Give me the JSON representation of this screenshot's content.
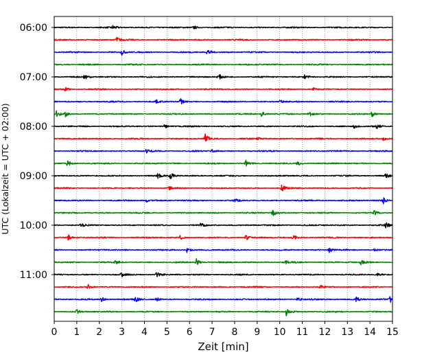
{
  "chart_data": {
    "type": "line",
    "xlabel": "Zeit  [min]",
    "ylabel": "UTC (Lokalzeit = UTC + 02:00)",
    "xlim": [
      0,
      15
    ],
    "x_ticks": [
      "0",
      "1",
      "2",
      "3",
      "4",
      "5",
      "6",
      "7",
      "8",
      "9",
      "10",
      "11",
      "12",
      "13",
      "14",
      "15"
    ],
    "y_ticks": [
      "06:00",
      "07:00",
      "08:00",
      "09:00",
      "10:00",
      "11:00"
    ],
    "grid": "vertical dotted at every minute",
    "trace_interval_minutes": 15,
    "trace_colors": [
      "#000000",
      "#ff0000",
      "#0000ff",
      "#008000"
    ],
    "traces": [
      {
        "start": "06:00",
        "color": "#000000",
        "events": [
          [
            2.6,
            0.35
          ],
          [
            6.2,
            0.3
          ]
        ]
      },
      {
        "start": "06:15",
        "color": "#ff0000",
        "events": [
          [
            2.75,
            0.6
          ]
        ]
      },
      {
        "start": "06:30",
        "color": "#0000ff",
        "events": [
          [
            3.0,
            0.45
          ],
          [
            6.8,
            0.65
          ]
        ]
      },
      {
        "start": "06:45",
        "color": "#008000",
        "events": []
      },
      {
        "start": "07:00",
        "color": "#000000",
        "events": [
          [
            1.35,
            0.55
          ],
          [
            7.3,
            0.45
          ],
          [
            11.1,
            0.4
          ]
        ]
      },
      {
        "start": "07:15",
        "color": "#ff0000",
        "events": [
          [
            0.5,
            0.3
          ],
          [
            11.5,
            0.25
          ]
        ]
      },
      {
        "start": "07:30",
        "color": "#0000ff",
        "events": [
          [
            4.5,
            0.35
          ],
          [
            5.6,
            0.55
          ],
          [
            10.0,
            0.3
          ]
        ]
      },
      {
        "start": "07:45",
        "color": "#008000",
        "events": [
          [
            0.1,
            0.5
          ],
          [
            0.5,
            0.5
          ],
          [
            9.2,
            0.5
          ],
          [
            11.3,
            0.5
          ],
          [
            14.1,
            0.45
          ]
        ]
      },
      {
        "start": "08:00",
        "color": "#000000",
        "events": [
          [
            4.9,
            0.4
          ],
          [
            13.3,
            0.35
          ],
          [
            14.3,
            0.4
          ]
        ]
      },
      {
        "start": "08:15",
        "color": "#ff0000",
        "events": [
          [
            6.7,
            0.8
          ],
          [
            9.0,
            0.25
          ],
          [
            14.6,
            0.3
          ]
        ]
      },
      {
        "start": "08:30",
        "color": "#0000ff",
        "events": [
          [
            4.1,
            0.35
          ],
          [
            7.0,
            0.3
          ]
        ]
      },
      {
        "start": "08:45",
        "color": "#008000",
        "events": [
          [
            0.6,
            0.55
          ],
          [
            8.5,
            0.6
          ],
          [
            10.8,
            0.4
          ]
        ]
      },
      {
        "start": "09:00",
        "color": "#000000",
        "events": [
          [
            4.6,
            0.4
          ],
          [
            5.15,
            0.55
          ],
          [
            14.7,
            0.45
          ]
        ]
      },
      {
        "start": "09:15",
        "color": "#ff0000",
        "events": [
          [
            5.1,
            0.3
          ],
          [
            10.1,
            0.6
          ]
        ]
      },
      {
        "start": "09:30",
        "color": "#0000ff",
        "events": [
          [
            4.1,
            0.3
          ],
          [
            8.0,
            0.3
          ],
          [
            14.6,
            0.55
          ]
        ]
      },
      {
        "start": "09:45",
        "color": "#008000",
        "events": [
          [
            9.7,
            0.75
          ],
          [
            14.2,
            0.35
          ]
        ]
      },
      {
        "start": "10:00",
        "color": "#000000",
        "events": [
          [
            1.2,
            0.3
          ],
          [
            6.5,
            0.35
          ],
          [
            14.7,
            0.55
          ]
        ]
      },
      {
        "start": "10:15",
        "color": "#ff0000",
        "events": [
          [
            0.6,
            0.55
          ],
          [
            5.6,
            0.35
          ],
          [
            8.5,
            0.5
          ],
          [
            10.6,
            0.55
          ]
        ]
      },
      {
        "start": "10:30",
        "color": "#0000ff",
        "events": [
          [
            5.9,
            0.55
          ],
          [
            12.2,
            0.45
          ],
          [
            14.2,
            0.3
          ]
        ]
      },
      {
        "start": "10:45",
        "color": "#008000",
        "events": [
          [
            2.7,
            0.45
          ],
          [
            6.3,
            0.6
          ],
          [
            10.2,
            0.45
          ],
          [
            13.6,
            0.4
          ]
        ]
      },
      {
        "start": "11:00",
        "color": "#000000",
        "events": [
          [
            3.0,
            0.4
          ],
          [
            4.55,
            0.6
          ],
          [
            14.3,
            0.35
          ]
        ]
      },
      {
        "start": "11:15",
        "color": "#ff0000",
        "events": [
          [
            1.5,
            0.45
          ],
          [
            11.8,
            0.35
          ]
        ]
      },
      {
        "start": "11:30",
        "color": "#0000ff",
        "events": [
          [
            2.1,
            0.45
          ],
          [
            3.6,
            0.5
          ],
          [
            4.5,
            0.4
          ],
          [
            10.8,
            0.35
          ],
          [
            13.4,
            0.4
          ],
          [
            14.9,
            0.55
          ]
        ]
      },
      {
        "start": "11:45",
        "color": "#008000",
        "events": [
          [
            1.0,
            0.3
          ],
          [
            10.3,
            0.75
          ]
        ]
      }
    ]
  }
}
